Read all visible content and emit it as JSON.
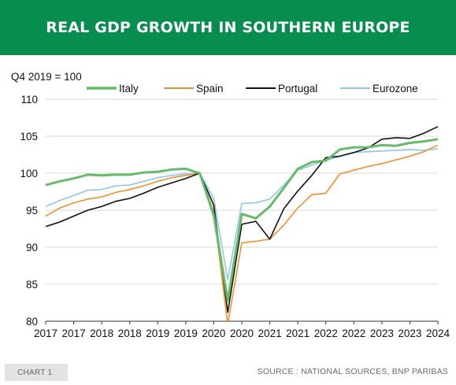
{
  "header": {
    "title": "REAL GDP GROWTH IN SOUTHERN EUROPE"
  },
  "footer": {
    "chart_label": "CHART 1",
    "source": "SOURCE : NATIONAL SOURCES, BNP PARIBAS"
  },
  "chart_data": {
    "type": "line",
    "title": "REAL GDP GROWTH IN SOUTHERN EUROPE",
    "ylabel": "Q4 2019 = 100",
    "xlabel": "",
    "ylim": [
      80,
      110
    ],
    "yticks": [
      80,
      85,
      90,
      95,
      100,
      105,
      110
    ],
    "xlim": [
      "2017-Q1",
      "2024-Q1"
    ],
    "xtick_labels": [
      "2017",
      "2017",
      "2018",
      "2018",
      "2019",
      "2019",
      "2020",
      "2020",
      "2021",
      "2021",
      "2022",
      "2022",
      "2023",
      "2023",
      "2024"
    ],
    "x": [
      "2017-Q1",
      "2017-Q2",
      "2017-Q3",
      "2017-Q4",
      "2018-Q1",
      "2018-Q2",
      "2018-Q3",
      "2018-Q4",
      "2019-Q1",
      "2019-Q2",
      "2019-Q3",
      "2019-Q4",
      "2020-Q1",
      "2020-Q2",
      "2020-Q3",
      "2020-Q4",
      "2021-Q1",
      "2021-Q2",
      "2021-Q3",
      "2021-Q4",
      "2022-Q1",
      "2022-Q2",
      "2022-Q3",
      "2022-Q4",
      "2023-Q1",
      "2023-Q2",
      "2023-Q3",
      "2023-Q4",
      "2024-Q1"
    ],
    "legend_position": "top",
    "grid": "horizontal",
    "series": [
      {
        "name": "Italy",
        "color": "#66bb6a",
        "width": 3,
        "values": [
          98.4,
          98.9,
          99.3,
          99.8,
          99.7,
          99.8,
          99.8,
          100.1,
          100.2,
          100.5,
          100.6,
          100.0,
          94.3,
          82.8,
          94.5,
          93.9,
          95.5,
          98.0,
          100.6,
          101.5,
          101.7,
          103.2,
          103.5,
          103.5,
          103.8,
          103.7,
          104.1,
          104.3,
          104.6
        ]
      },
      {
        "name": "Spain",
        "color": "#ef8f32",
        "width": 1.6,
        "values": [
          94.2,
          95.3,
          96.0,
          96.5,
          96.8,
          97.4,
          97.8,
          98.3,
          98.9,
          99.4,
          99.7,
          100.0,
          94.8,
          79.6,
          90.6,
          90.8,
          91.1,
          93.0,
          95.3,
          97.1,
          97.3,
          99.9,
          100.4,
          100.9,
          101.3,
          101.8,
          102.3,
          102.9,
          103.8
        ]
      },
      {
        "name": "Portugal",
        "color": "#111111",
        "width": 1.6,
        "values": [
          92.8,
          93.4,
          94.2,
          95.0,
          95.5,
          96.2,
          96.6,
          97.3,
          98.1,
          98.7,
          99.3,
          100.0,
          95.7,
          81.2,
          93.1,
          93.5,
          91.1,
          95.2,
          97.6,
          99.7,
          102.1,
          102.3,
          102.8,
          103.4,
          104.6,
          104.8,
          104.7,
          105.4,
          106.3
        ]
      },
      {
        "name": "Eurozone",
        "color": "#8fc6e6",
        "width": 1.6,
        "values": [
          95.5,
          96.3,
          97.0,
          97.7,
          97.8,
          98.3,
          98.4,
          98.9,
          99.4,
          99.7,
          99.9,
          100.0,
          96.6,
          85.6,
          95.9,
          96.0,
          96.5,
          98.4,
          100.4,
          101.1,
          101.7,
          102.3,
          102.8,
          102.9,
          103.0,
          103.1,
          103.2,
          103.1,
          103.3
        ]
      }
    ]
  }
}
